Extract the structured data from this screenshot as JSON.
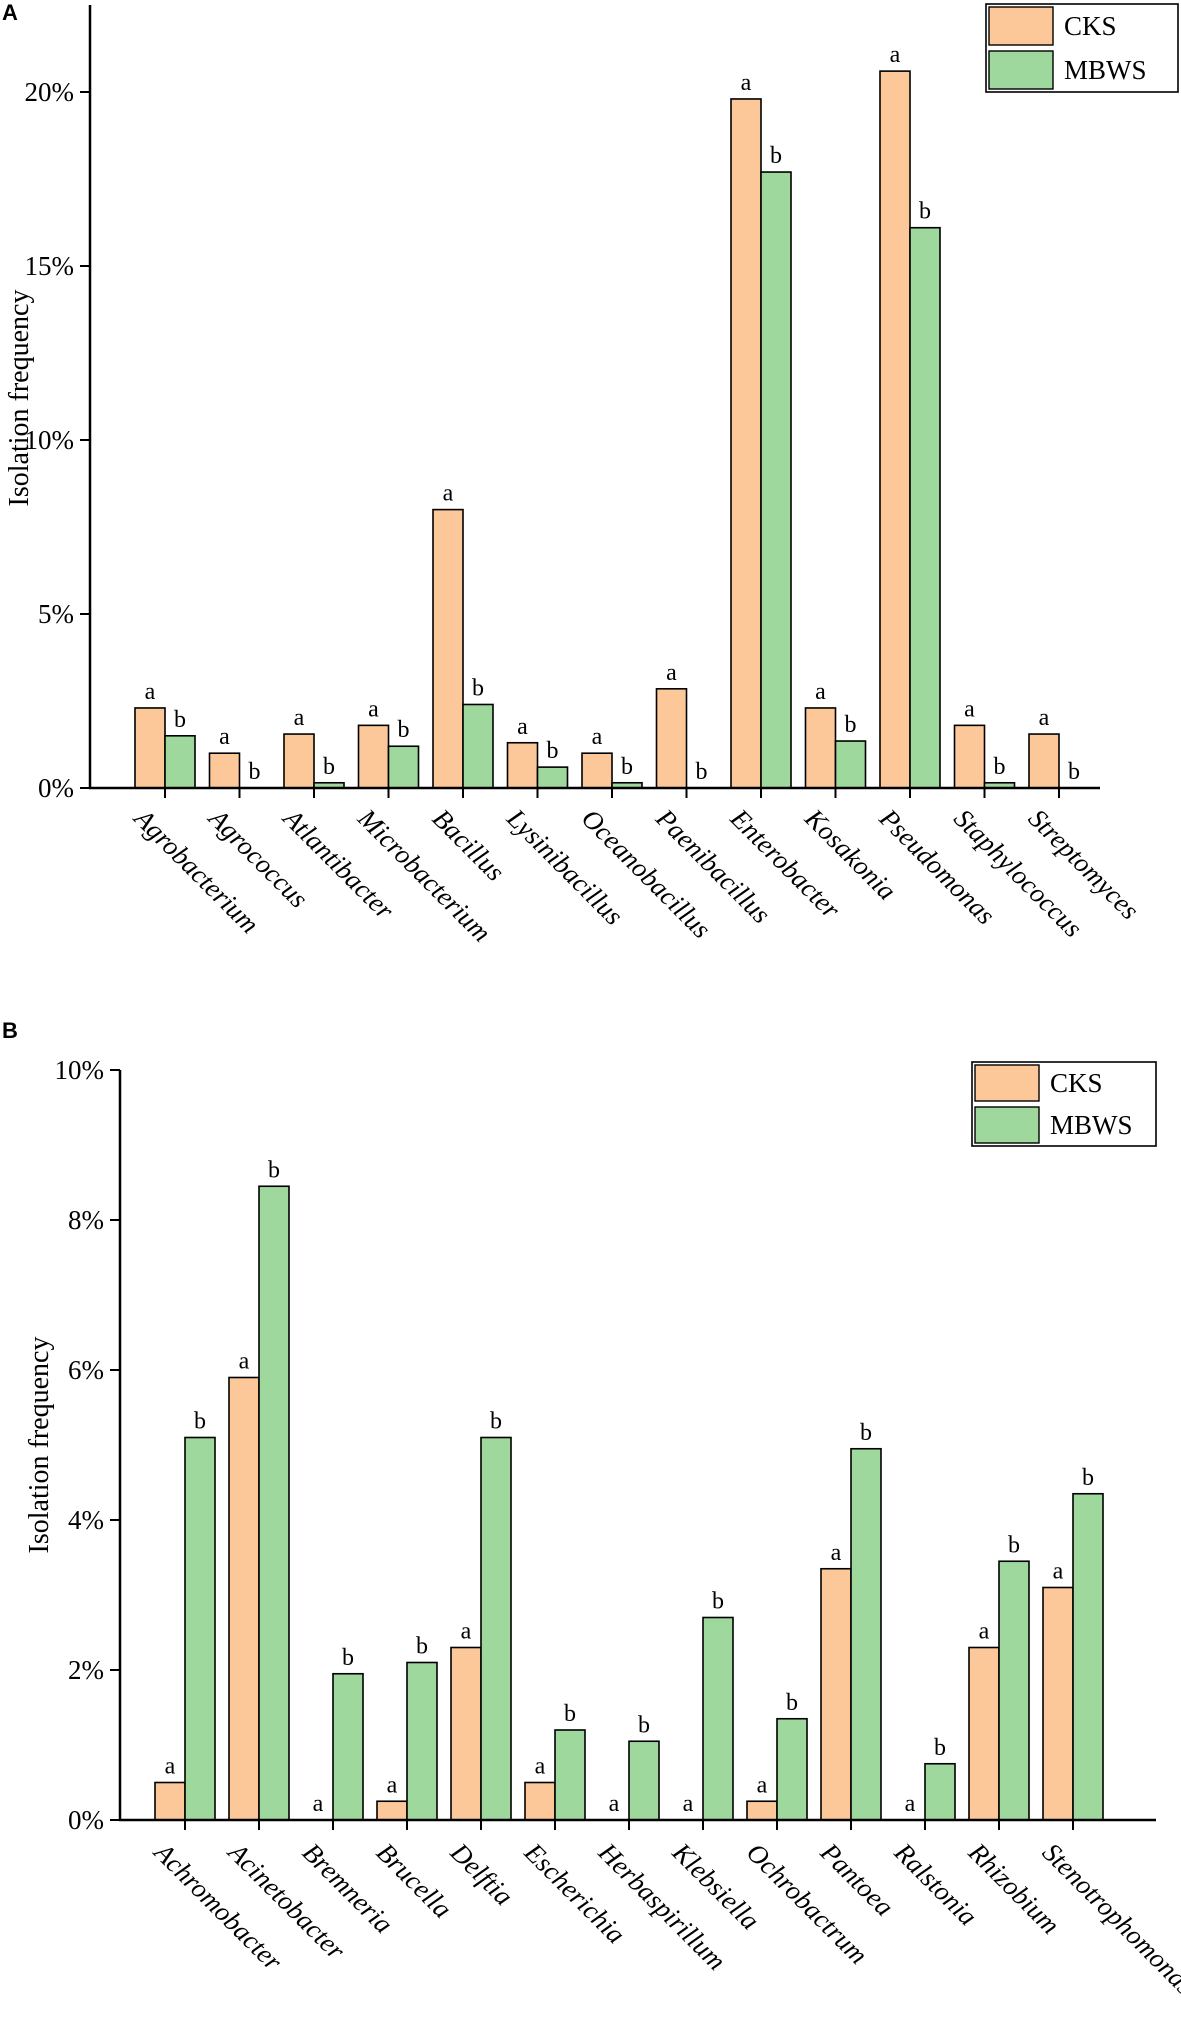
{
  "colors": {
    "cks": "#FDC899",
    "mbws": "#9ED89D"
  },
  "chart_data": [
    {
      "panel": "A",
      "type": "bar",
      "ylabel": "Isolation frequency",
      "ylim": [
        0,
        22.5
      ],
      "yticks": [
        0,
        5,
        10,
        15,
        20
      ],
      "ytick_labels": [
        "0%",
        "5%",
        "10%",
        "15%",
        "20%"
      ],
      "legend": "top-right",
      "legend_entries": [
        "CKS",
        "MBWS"
      ],
      "categories": [
        "Agrobacterium",
        "Agrococcus",
        "Atlantibacter",
        "Microbacterium",
        "Bacillus",
        "Lysinibacillus",
        "Oceanobacillus",
        "Paenibacillus",
        "Enterobacter",
        "Kosakonia",
        "Pseudomonas",
        "Staphylococcus",
        "Streptomyces"
      ],
      "series": [
        {
          "name": "CKS",
          "values": [
            2.3,
            1.0,
            1.55,
            1.8,
            8.0,
            1.3,
            1.0,
            2.85,
            19.8,
            2.3,
            20.6,
            1.8,
            1.55
          ],
          "labels": [
            "a",
            "a",
            "a",
            "a",
            "a",
            "a",
            "a",
            "a",
            "a",
            "a",
            "a",
            "a",
            "a"
          ]
        },
        {
          "name": "MBWS",
          "values": [
            1.5,
            0,
            0.15,
            1.2,
            2.4,
            0.6,
            0.15,
            0,
            17.7,
            1.35,
            16.1,
            0.15,
            0
          ],
          "labels": [
            "b",
            "b",
            "b",
            "b",
            "b",
            "b",
            "b",
            "b",
            "b",
            "b",
            "b",
            "b",
            "b"
          ]
        }
      ]
    },
    {
      "panel": "B",
      "type": "bar",
      "ylabel": "Isolation frequency",
      "ylim": [
        0,
        10
      ],
      "yticks": [
        0,
        2,
        4,
        6,
        8,
        10
      ],
      "ytick_labels": [
        "0%",
        "2%",
        "4%",
        "6%",
        "8%",
        "10%"
      ],
      "legend": "top-right",
      "legend_entries": [
        "CKS",
        "MBWS"
      ],
      "categories": [
        "Achromobacter",
        "Acinetobacter",
        "Bremneria",
        "Brucella",
        "Delftia",
        "Escherichia",
        "Herbaspirillum",
        "Klebsiella",
        "Ochrobactrum",
        "Pantoea",
        "Ralstonia",
        "Rhizobium",
        "Stenotrophomonas"
      ],
      "series": [
        {
          "name": "CKS",
          "values": [
            0.5,
            5.9,
            0,
            0.25,
            2.3,
            0.5,
            0,
            0,
            0.25,
            3.35,
            0,
            2.3,
            3.1
          ],
          "labels": [
            "a",
            "a",
            "a",
            "a",
            "a",
            "a",
            "a",
            "a",
            "a",
            "a",
            "a",
            "a",
            "a"
          ]
        },
        {
          "name": "MBWS",
          "values": [
            5.1,
            8.45,
            1.95,
            2.1,
            5.1,
            1.2,
            1.05,
            2.7,
            1.35,
            4.95,
            0.75,
            3.45,
            4.35
          ],
          "labels": [
            "b",
            "b",
            "b",
            "b",
            "b",
            "b",
            "b",
            "b",
            "b",
            "b",
            "b",
            "b",
            "b"
          ]
        }
      ]
    }
  ]
}
